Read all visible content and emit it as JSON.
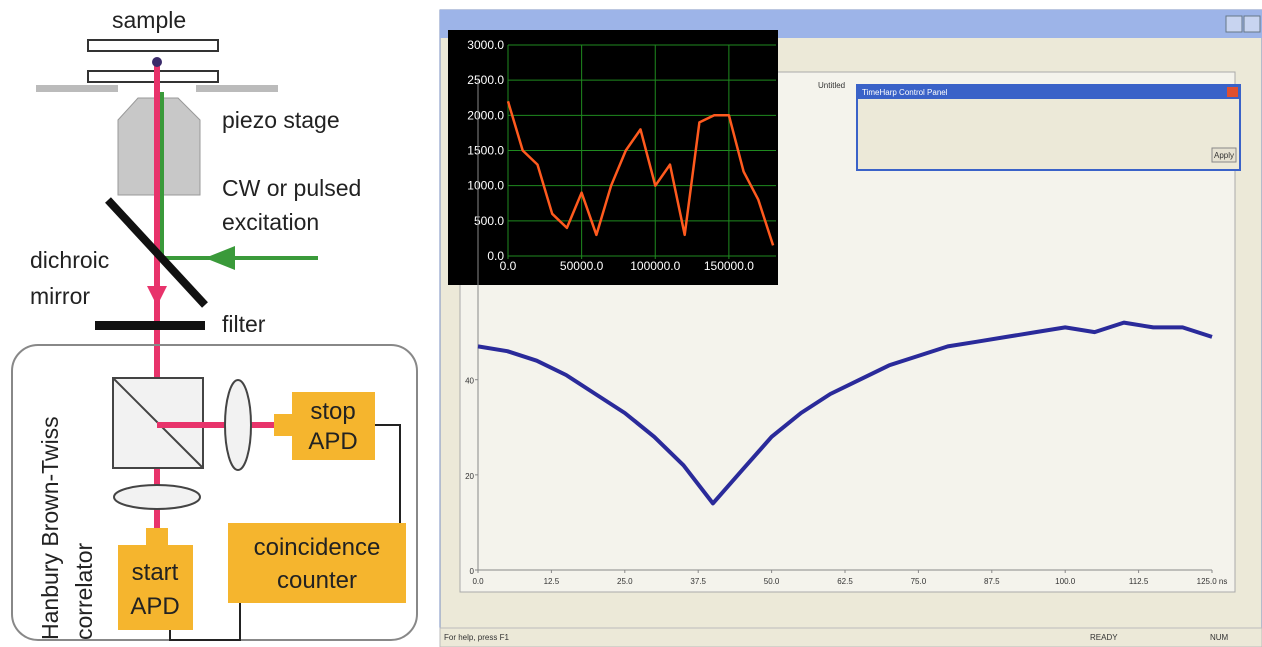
{
  "diagram": {
    "labels": {
      "sample": "sample",
      "stage": "piezo stage",
      "excitation_1": "CW or pulsed",
      "excitation_2": "excitation",
      "dichroic_1": "dichroic",
      "dichroic_2": "mirror",
      "filter": "filter",
      "hbt_1": "Hanbury Brown-Twiss",
      "hbt_2": "correlator",
      "stop_1": "stop",
      "stop_2": "APD",
      "start_1": "start",
      "start_2": "APD",
      "counter_1": "coincidence",
      "counter_2": "counter"
    }
  },
  "window": {
    "plot_label": "Untitled",
    "panel_title": "TimeHarp Control Panel",
    "panel_button": "Apply",
    "status_left": "For help, press F1",
    "status_ready": "READY",
    "status_num": "NUM"
  },
  "chart_data": [
    {
      "type": "line",
      "color": "#ff5a1e",
      "x": [
        0,
        10000,
        20000,
        30000,
        40000,
        50000,
        60000,
        70000,
        80000,
        90000,
        100000,
        110000,
        120000,
        130000,
        140000,
        150000,
        160000,
        170000,
        180000
      ],
      "values": [
        2200,
        1500,
        1300,
        600,
        400,
        900,
        300,
        1000,
        1500,
        1800,
        1000,
        1300,
        300,
        1900,
        2000,
        2000,
        1200,
        800,
        150
      ],
      "xlim": [
        0,
        182000
      ],
      "ylim": [
        0,
        3000
      ],
      "xticks": [
        {
          "value": 0,
          "label": "0.0"
        },
        {
          "value": 50000,
          "label": "50000.0"
        },
        {
          "value": 100000,
          "label": "100000.0"
        },
        {
          "value": 150000,
          "label": "150000.0"
        }
      ],
      "yticks": [
        {
          "value": 0,
          "label": "0.0"
        },
        {
          "value": 500,
          "label": "500.0"
        },
        {
          "value": 1000,
          "label": "1000.0"
        },
        {
          "value": 1500,
          "label": "1500.0"
        },
        {
          "value": 2000,
          "label": "2000.0"
        },
        {
          "value": 2500,
          "label": "2500.0"
        },
        {
          "value": 3000,
          "label": "3000.0"
        }
      ],
      "grid": true
    },
    {
      "type": "line",
      "color": "#2a2a9a",
      "x": [
        0,
        5,
        10,
        15,
        20,
        25,
        30,
        35,
        40,
        45,
        50,
        55,
        60,
        65,
        70,
        75,
        80,
        85,
        90,
        95,
        100,
        105,
        110,
        115,
        120,
        125
      ],
      "values": [
        47,
        46,
        44,
        41,
        37,
        33,
        28,
        22,
        14,
        21,
        28,
        33,
        37,
        40,
        43,
        45,
        47,
        48,
        49,
        50,
        51,
        50,
        52,
        51,
        51,
        49
      ],
      "xlim": [
        0,
        125
      ],
      "ylim": [
        0,
        103
      ],
      "xticks": [
        {
          "value": 0,
          "label": "0.0"
        },
        12.5,
        {
          "value": 25,
          "label": "25.0"
        },
        37.5,
        {
          "value": 50,
          "label": "50.0"
        },
        62.5,
        {
          "value": 75,
          "label": "75.0"
        },
        87.5,
        {
          "value": 100,
          "label": "100.0"
        },
        112.5,
        {
          "value": 125,
          "label": "125.0 ns"
        }
      ],
      "yticks": [
        0,
        20,
        40
      ],
      "grid": false
    }
  ]
}
